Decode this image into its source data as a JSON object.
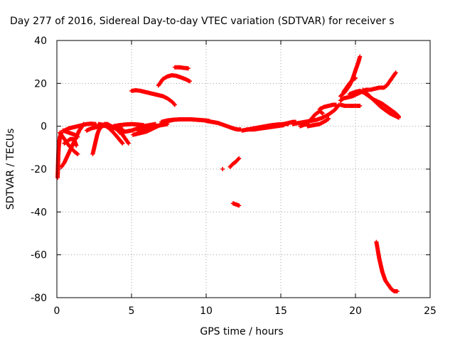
{
  "chart_data": {
    "type": "scatter",
    "title": "Day 277 of 2016, Sidereal Day-to-day VTEC variation (SDTVAR) for receiver s",
    "xlabel": "GPS time / hours",
    "ylabel": "SDTVAR / TECUs",
    "xlim": [
      0,
      25
    ],
    "ylim": [
      -80,
      40
    ],
    "xticks": [
      0,
      5,
      10,
      15,
      20,
      25
    ],
    "yticks": [
      -80,
      -60,
      -40,
      -20,
      0,
      20,
      40
    ],
    "grid": true,
    "marker": "+",
    "series": [
      {
        "name": "SDTVAR",
        "color": "#ff0000",
        "segments": [
          [
            [
              0.05,
              -24
            ],
            [
              0.1,
              -13
            ],
            [
              0.12,
              -10
            ],
            [
              0.15,
              -8
            ],
            [
              0.2,
              -5
            ],
            [
              0.25,
              -4
            ],
            [
              0.3,
              -3
            ]
          ],
          [
            [
              0.3,
              -19
            ],
            [
              0.5,
              -17
            ],
            [
              0.7,
              -14
            ],
            [
              0.9,
              -11
            ],
            [
              1.1,
              -8
            ],
            [
              1.3,
              -5
            ],
            [
              1.5,
              -2
            ],
            [
              1.7,
              0
            ],
            [
              1.8,
              1
            ]
          ],
          [
            [
              0.4,
              -2
            ],
            [
              0.6,
              -2.5
            ],
            [
              0.8,
              -3
            ],
            [
              1.0,
              -3.5
            ],
            [
              1.2,
              -4
            ],
            [
              1.3,
              -4.5
            ],
            [
              1.4,
              -5
            ]
          ],
          [
            [
              0.2,
              -3
            ],
            [
              0.4,
              -5
            ],
            [
              0.6,
              -7
            ],
            [
              0.8,
              -9
            ],
            [
              1.0,
              -10.5
            ],
            [
              1.2,
              -12
            ],
            [
              1.4,
              -13
            ]
          ],
          [
            [
              0.5,
              -8
            ],
            [
              0.7,
              -7
            ],
            [
              0.9,
              -6
            ],
            [
              1.1,
              -6
            ],
            [
              1.2,
              -7
            ],
            [
              1.3,
              -9
            ]
          ],
          [
            [
              0.5,
              -2
            ],
            [
              0.8,
              -1
            ],
            [
              1.1,
              -0.5
            ],
            [
              1.4,
              0
            ],
            [
              1.7,
              0.5
            ],
            [
              2.0,
              1
            ],
            [
              2.3,
              1.2
            ],
            [
              2.6,
              1
            ]
          ],
          [
            [
              2.4,
              -13
            ],
            [
              2.5,
              -10
            ],
            [
              2.6,
              -7
            ],
            [
              2.7,
              -4
            ],
            [
              2.8,
              -2
            ],
            [
              3.0,
              0
            ],
            [
              3.2,
              1
            ],
            [
              3.4,
              1
            ],
            [
              3.6,
              0
            ],
            [
              3.8,
              -1
            ]
          ],
          [
            [
              2.0,
              -2
            ],
            [
              2.3,
              -1
            ],
            [
              2.6,
              -0.5
            ],
            [
              2.9,
              0
            ],
            [
              3.2,
              0.2
            ],
            [
              3.5,
              0
            ],
            [
              3.8,
              -0.5
            ],
            [
              4.1,
              -1
            ],
            [
              4.4,
              -1.5
            ]
          ],
          [
            [
              2.8,
              1
            ],
            [
              3.2,
              0.5
            ],
            [
              3.5,
              -1
            ],
            [
              3.8,
              -3
            ],
            [
              4.1,
              -5.5
            ],
            [
              4.4,
              -8
            ]
          ],
          [
            [
              3.5,
              0.5
            ],
            [
              3.8,
              -0.5
            ],
            [
              4.1,
              -2
            ],
            [
              4.4,
              -4
            ],
            [
              4.6,
              -6
            ],
            [
              4.8,
              -8
            ]
          ],
          [
            [
              4.2,
              -3
            ],
            [
              4.6,
              -2.5
            ],
            [
              5.0,
              -2
            ],
            [
              5.4,
              -1
            ],
            [
              5.8,
              0
            ],
            [
              6.2,
              0.5
            ],
            [
              6.6,
              1
            ]
          ],
          [
            [
              3.8,
              0
            ],
            [
              4.2,
              0.5
            ],
            [
              4.6,
              0.8
            ],
            [
              5.0,
              1
            ],
            [
              5.4,
              0.8
            ],
            [
              5.8,
              0.5
            ]
          ],
          [
            [
              5.1,
              -4
            ],
            [
              5.4,
              -3.5
            ],
            [
              5.7,
              -3
            ],
            [
              6.0,
              -2.5
            ],
            [
              6.3,
              -1.5
            ],
            [
              6.6,
              -0.5
            ],
            [
              6.9,
              0.5
            ],
            [
              7.2,
              1.5
            ],
            [
              7.5,
              2.5
            ],
            [
              7.8,
              3
            ]
          ],
          [
            [
              5.4,
              -2
            ],
            [
              5.8,
              -1
            ],
            [
              6.2,
              -0.5
            ],
            [
              6.6,
              0
            ],
            [
              7.0,
              0.5
            ],
            [
              7.4,
              1
            ]
          ],
          [
            [
              7.0,
              2
            ],
            [
              7.4,
              2.7
            ],
            [
              7.8,
              3
            ],
            [
              8.2,
              3.2
            ],
            [
              8.6,
              3.2
            ],
            [
              9.0,
              3.2
            ],
            [
              9.4,
              3
            ],
            [
              9.8,
              2.8
            ],
            [
              10.2,
              2.5
            ]
          ],
          [
            [
              10.0,
              2.5
            ],
            [
              10.4,
              2
            ],
            [
              10.8,
              1.5
            ],
            [
              11.2,
              0.5
            ],
            [
              11.6,
              -0.5
            ],
            [
              11.9,
              -1.2
            ],
            [
              12.1,
              -1.5
            ],
            [
              12.3,
              -1.5
            ]
          ],
          [
            [
              5.0,
              16.5
            ],
            [
              5.3,
              16.8
            ],
            [
              5.6,
              16.5
            ],
            [
              5.9,
              16
            ],
            [
              6.2,
              15.5
            ],
            [
              6.5,
              15
            ],
            [
              6.8,
              14.5
            ],
            [
              7.1,
              14
            ],
            [
              7.4,
              13
            ],
            [
              7.7,
              11.5
            ],
            [
              7.9,
              10
            ]
          ],
          [
            [
              6.8,
              19
            ],
            [
              7.1,
              22
            ],
            [
              7.4,
              23.2
            ],
            [
              7.7,
              23.8
            ],
            [
              8.0,
              23.5
            ],
            [
              8.3,
              22.8
            ],
            [
              8.6,
              22
            ],
            [
              8.9,
              21
            ]
          ],
          [
            [
              7.9,
              27.5
            ],
            [
              8.2,
              27.5
            ],
            [
              8.5,
              27.2
            ],
            [
              8.8,
              27
            ]
          ],
          [
            [
              11.1,
              -20
            ]
          ],
          [
            [
              11.6,
              -19
            ],
            [
              11.8,
              -17.5
            ],
            [
              12.0,
              -16.5
            ],
            [
              12.2,
              -15
            ]
          ],
          [
            [
              11.8,
              -36
            ],
            [
              12.0,
              -36.5
            ],
            [
              12.2,
              -37
            ]
          ],
          [
            [
              12.4,
              -2
            ],
            [
              12.8,
              -1.5
            ],
            [
              13.2,
              -1
            ],
            [
              13.6,
              -0.5
            ],
            [
              14.0,
              0
            ],
            [
              14.4,
              0.5
            ],
            [
              14.8,
              0.8
            ],
            [
              15.2,
              1
            ],
            [
              15.5,
              1
            ]
          ],
          [
            [
              12.7,
              -1.5
            ],
            [
              13.2,
              -1.5
            ],
            [
              13.7,
              -1
            ],
            [
              14.2,
              -0.5
            ],
            [
              14.7,
              0
            ],
            [
              15.2,
              0.5
            ]
          ],
          [
            [
              15.2,
              1
            ],
            [
              15.5,
              1.5
            ],
            [
              15.8,
              2
            ],
            [
              16.0,
              2
            ]
          ],
          [
            [
              15.8,
              1
            ],
            [
              16.2,
              1.5
            ],
            [
              16.6,
              2
            ],
            [
              17.0,
              2.5
            ],
            [
              17.4,
              3
            ],
            [
              17.8,
              4
            ],
            [
              18.2,
              5.5
            ],
            [
              18.6,
              7.5
            ],
            [
              18.9,
              10
            ]
          ],
          [
            [
              16.3,
              0
            ],
            [
              16.7,
              1
            ],
            [
              17.0,
              3
            ],
            [
              17.3,
              5.5
            ],
            [
              17.6,
              7
            ],
            [
              17.8,
              6
            ]
          ],
          [
            [
              16.8,
              0
            ],
            [
              17.2,
              0.5
            ],
            [
              17.6,
              1
            ],
            [
              18.0,
              2.5
            ],
            [
              18.2,
              3.5
            ]
          ],
          [
            [
              17.6,
              8
            ],
            [
              17.9,
              9
            ],
            [
              18.2,
              9.5
            ],
            [
              18.5,
              10
            ],
            [
              18.7,
              10
            ]
          ],
          [
            [
              19.0,
              12
            ],
            [
              19.2,
              13
            ],
            [
              19.5,
              13.5
            ],
            [
              19.8,
              14
            ],
            [
              20.1,
              15
            ],
            [
              20.4,
              16
            ],
            [
              20.7,
              17
            ],
            [
              21.0,
              17
            ],
            [
              21.3,
              17.5
            ],
            [
              21.6,
              18
            ],
            [
              21.9,
              18
            ],
            [
              22.1,
              19
            ],
            [
              22.3,
              21
            ],
            [
              22.5,
              23
            ],
            [
              22.7,
              25
            ]
          ],
          [
            [
              19.0,
              14
            ],
            [
              19.3,
              16
            ],
            [
              19.6,
              19
            ],
            [
              19.8,
              22
            ],
            [
              20.0,
              26
            ],
            [
              20.2,
              30
            ],
            [
              20.3,
              32.5
            ]
          ],
          [
            [
              19.6,
              15
            ],
            [
              20.0,
              16
            ],
            [
              20.3,
              16.5
            ],
            [
              20.6,
              15.5
            ],
            [
              20.9,
              14
            ],
            [
              21.2,
              12.5
            ],
            [
              21.5,
              11.5
            ],
            [
              21.8,
              10.5
            ],
            [
              22.1,
              9
            ],
            [
              22.4,
              7.5
            ],
            [
              22.7,
              6
            ],
            [
              22.9,
              4.5
            ]
          ],
          [
            [
              19.2,
              16
            ],
            [
              19.4,
              18
            ],
            [
              19.6,
              20
            ],
            [
              19.8,
              21.5
            ],
            [
              20.0,
              22.5
            ]
          ],
          [
            [
              19.0,
              10
            ],
            [
              19.3,
              9.5
            ],
            [
              19.6,
              9.5
            ],
            [
              19.9,
              9.5
            ],
            [
              20.2,
              9.5
            ],
            [
              20.3,
              9.5
            ]
          ],
          [
            [
              20.5,
              17
            ],
            [
              20.8,
              15
            ],
            [
              21.1,
              13
            ],
            [
              21.4,
              11
            ],
            [
              21.7,
              9
            ],
            [
              22.0,
              7.5
            ],
            [
              22.3,
              6
            ],
            [
              22.6,
              5
            ],
            [
              22.9,
              4
            ]
          ],
          [
            [
              21.4,
              -54
            ],
            [
              21.5,
              -58
            ],
            [
              21.6,
              -62
            ],
            [
              21.7,
              -65
            ],
            [
              21.8,
              -68
            ],
            [
              21.9,
              -70
            ],
            [
              22.0,
              -72
            ],
            [
              22.2,
              -74
            ],
            [
              22.4,
              -76
            ],
            [
              22.6,
              -77
            ],
            [
              22.8,
              -77
            ]
          ]
        ]
      }
    ]
  }
}
